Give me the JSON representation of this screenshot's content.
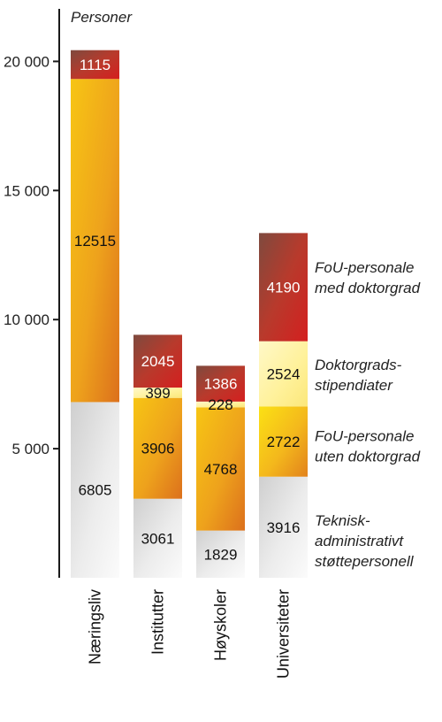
{
  "chart_data": {
    "type": "bar",
    "stacked": true,
    "ylabel": "Personer",
    "ylim": [
      0,
      22500
    ],
    "y_ticks": [
      5000,
      10000,
      15000,
      20000
    ],
    "y_tick_labels": [
      "5 000",
      "10 000",
      "15 000",
      "20 000"
    ],
    "grid": false,
    "legend": "right",
    "categories": [
      "Næringsliv",
      "Institutter",
      "Høyskoler",
      "Universiteter"
    ],
    "series": [
      {
        "name": "Teknisk-administrativt støttepersonell",
        "label_lines": [
          "Teknisk-",
          "administrativt",
          "støttepersonell"
        ],
        "values": [
          6805,
          3061,
          1829,
          3916
        ],
        "value_labels": [
          "6805",
          "3061",
          "1829",
          "3916"
        ],
        "color": "#e2e2e2"
      },
      {
        "name": "FoU-personale uten doktorgrad",
        "label_lines": [
          "FoU-personale",
          "uten doktorgrad"
        ],
        "values": [
          12515,
          3906,
          4768,
          2722
        ],
        "value_labels": [
          "12515",
          "3906",
          "4768",
          "2722"
        ],
        "color": "#f0a818"
      },
      {
        "name": "Doktorgradsstipendiater",
        "label_lines": [
          "Doktorgrads-",
          "stipendiater"
        ],
        "values": [
          0,
          399,
          228,
          2524
        ],
        "value_labels": [
          "",
          "399",
          "228",
          "2524"
        ],
        "color": "#fff19a"
      },
      {
        "name": "FoU-personale med doktorgrad",
        "label_lines": [
          "FoU-personale",
          "med doktorgrad"
        ],
        "values": [
          1115,
          2045,
          1386,
          4190
        ],
        "value_labels": [
          "1115",
          "2045",
          "1386",
          "4190"
        ],
        "color": "#c93a2a"
      }
    ]
  }
}
